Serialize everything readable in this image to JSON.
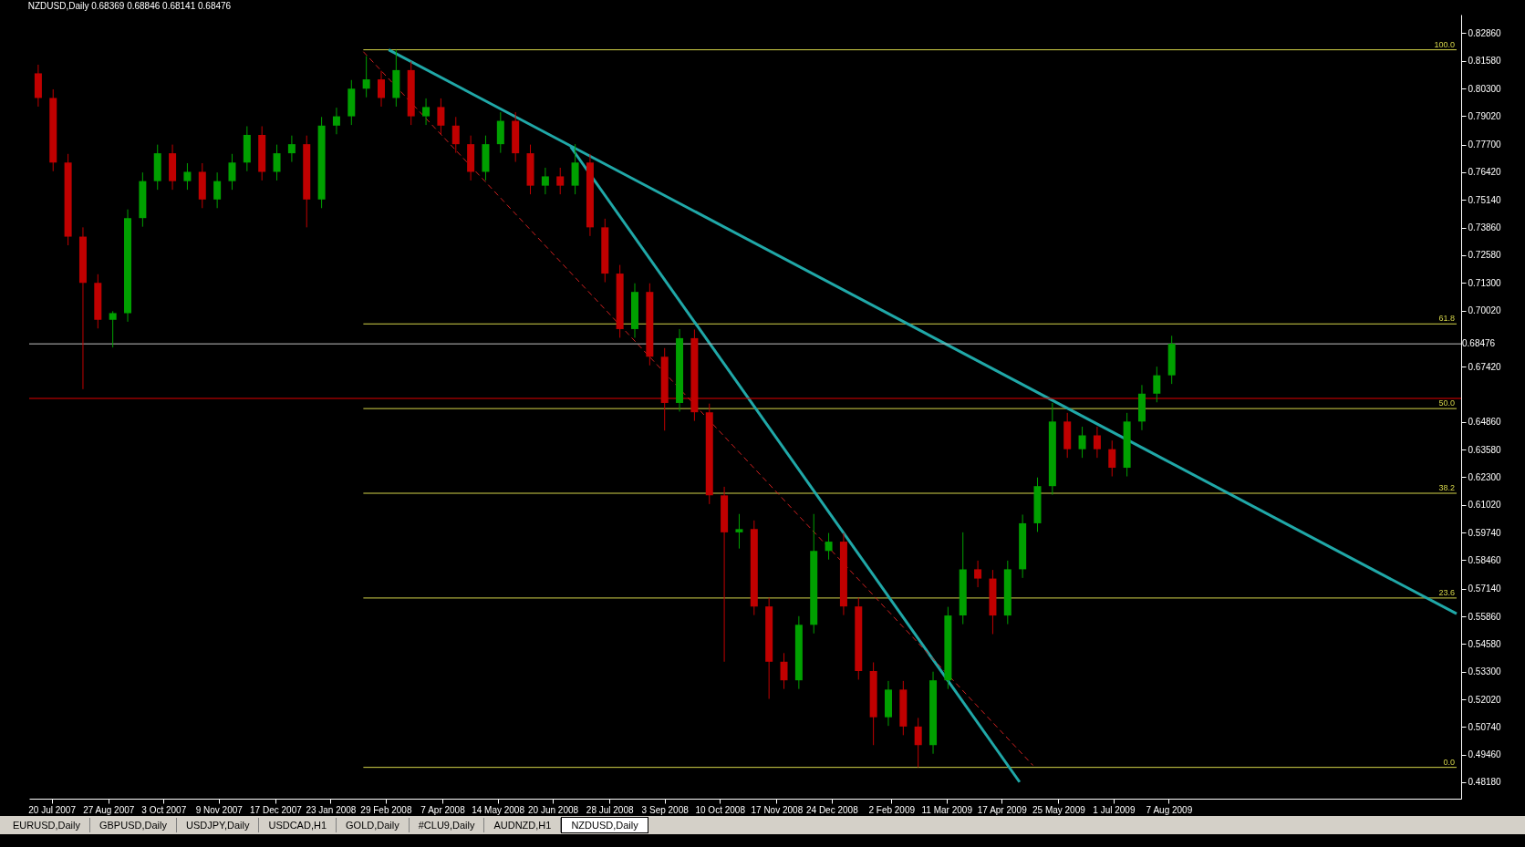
{
  "chart_data": {
    "type": "candlestick",
    "title": "NZDUSD,Daily  0.68369 0.68846 0.68141 0.68476",
    "x": [
      "2007-07-11",
      "2007-07-21",
      "2007-07-31",
      "2007-08-10",
      "2007-08-20",
      "2007-08-30",
      "2007-09-09",
      "2007-09-19",
      "2007-09-29",
      "2007-10-09",
      "2007-10-19",
      "2007-10-29",
      "2007-11-08",
      "2007-11-18",
      "2007-11-28",
      "2007-12-08",
      "2007-12-18",
      "2007-12-28",
      "2008-01-07",
      "2008-01-17",
      "2008-01-27",
      "2008-02-06",
      "2008-02-16",
      "2008-02-26",
      "2008-03-07",
      "2008-03-17",
      "2008-03-27",
      "2008-04-06",
      "2008-04-16",
      "2008-04-26",
      "2008-05-06",
      "2008-05-16",
      "2008-05-26",
      "2008-06-05",
      "2008-06-15",
      "2008-06-25",
      "2008-07-05",
      "2008-07-15",
      "2008-07-25",
      "2008-08-04",
      "2008-08-14",
      "2008-08-24",
      "2008-09-03",
      "2008-09-13",
      "2008-09-23",
      "2008-10-03",
      "2008-10-13",
      "2008-10-23",
      "2008-11-02",
      "2008-11-12",
      "2008-11-22",
      "2008-12-02",
      "2008-12-12",
      "2008-12-22",
      "2009-01-01",
      "2009-01-11",
      "2009-01-21",
      "2009-01-31",
      "2009-02-10",
      "2009-02-20",
      "2009-03-02",
      "2009-03-12",
      "2009-03-22",
      "2009-04-01",
      "2009-04-11",
      "2009-04-21",
      "2009-05-01",
      "2009-05-11",
      "2009-05-21",
      "2009-05-31",
      "2009-06-10",
      "2009-06-20",
      "2009-06-30",
      "2009-07-10",
      "2009-07-20",
      "2009-07-30",
      "2009-08-09"
    ],
    "ohlc": [
      [
        0.81,
        0.814,
        0.7946,
        0.7986
      ],
      [
        0.7986,
        0.8026,
        0.7647,
        0.7687
      ],
      [
        0.7687,
        0.7727,
        0.7304,
        0.7344
      ],
      [
        0.7344,
        0.7387,
        0.6638,
        0.713
      ],
      [
        0.713,
        0.717,
        0.6919,
        0.6959
      ],
      [
        0.6959,
        0.6999,
        0.6831,
        0.699
      ],
      [
        0.699,
        0.747,
        0.695,
        0.743
      ],
      [
        0.743,
        0.7641,
        0.739,
        0.7601
      ],
      [
        0.7601,
        0.777,
        0.7561,
        0.773
      ],
      [
        0.773,
        0.777,
        0.7561,
        0.7601
      ],
      [
        0.7601,
        0.7684,
        0.7561,
        0.7644
      ],
      [
        0.7644,
        0.7684,
        0.7476,
        0.7516
      ],
      [
        0.7516,
        0.7641,
        0.7476,
        0.7601
      ],
      [
        0.7601,
        0.7727,
        0.7561,
        0.7687
      ],
      [
        0.7687,
        0.7855,
        0.7647,
        0.7815
      ],
      [
        0.7815,
        0.7855,
        0.7604,
        0.7644
      ],
      [
        0.7644,
        0.777,
        0.7604,
        0.773
      ],
      [
        0.773,
        0.7812,
        0.769,
        0.7772
      ],
      [
        0.7772,
        0.7812,
        0.7387,
        0.7516
      ],
      [
        0.7516,
        0.7898,
        0.7476,
        0.7858
      ],
      [
        0.7858,
        0.7941,
        0.7818,
        0.7901
      ],
      [
        0.7901,
        0.8069,
        0.7861,
        0.8029
      ],
      [
        0.8029,
        0.818,
        0.7989,
        0.8072
      ],
      [
        0.8072,
        0.8112,
        0.7946,
        0.7986
      ],
      [
        0.7986,
        0.8209,
        0.7946,
        0.8115
      ],
      [
        0.8115,
        0.8155,
        0.7861,
        0.7901
      ],
      [
        0.7901,
        0.7984,
        0.7861,
        0.7944
      ],
      [
        0.7944,
        0.7984,
        0.7818,
        0.7858
      ],
      [
        0.7858,
        0.7898,
        0.7732,
        0.7772
      ],
      [
        0.7772,
        0.7812,
        0.7604,
        0.7644
      ],
      [
        0.7644,
        0.7812,
        0.7604,
        0.7772
      ],
      [
        0.7772,
        0.792,
        0.7732,
        0.788
      ],
      [
        0.788,
        0.792,
        0.769,
        0.773
      ],
      [
        0.773,
        0.777,
        0.754,
        0.758
      ],
      [
        0.758,
        0.7663,
        0.754,
        0.7623
      ],
      [
        0.7623,
        0.7663,
        0.754,
        0.758
      ],
      [
        0.758,
        0.7772,
        0.754,
        0.7687
      ],
      [
        0.7687,
        0.7727,
        0.7347,
        0.7387
      ],
      [
        0.7387,
        0.7427,
        0.7133,
        0.7173
      ],
      [
        0.7173,
        0.7213,
        0.6876,
        0.6916
      ],
      [
        0.6916,
        0.7128,
        0.6876,
        0.7088
      ],
      [
        0.7088,
        0.7128,
        0.6748,
        0.6788
      ],
      [
        0.6788,
        0.6828,
        0.6446,
        0.6574
      ],
      [
        0.6574,
        0.6916,
        0.6534,
        0.6874
      ],
      [
        0.6874,
        0.6914,
        0.6491,
        0.6531
      ],
      [
        0.6531,
        0.6571,
        0.6106,
        0.6146
      ],
      [
        0.6146,
        0.6186,
        0.5376,
        0.5975
      ],
      [
        0.5975,
        0.606,
        0.59,
        0.599
      ],
      [
        0.599,
        0.603,
        0.5592,
        0.5632
      ],
      [
        0.5632,
        0.5672,
        0.5204,
        0.5376
      ],
      [
        0.5376,
        0.5416,
        0.525,
        0.529
      ],
      [
        0.529,
        0.5587,
        0.525,
        0.5547
      ],
      [
        0.5547,
        0.606,
        0.5507,
        0.5889
      ],
      [
        0.5889,
        0.5972,
        0.5849,
        0.5932
      ],
      [
        0.5932,
        0.5972,
        0.5592,
        0.5632
      ],
      [
        0.5632,
        0.5672,
        0.5293,
        0.5333
      ],
      [
        0.5333,
        0.5373,
        0.499,
        0.5119
      ],
      [
        0.5119,
        0.5287,
        0.5079,
        0.5247
      ],
      [
        0.5247,
        0.5287,
        0.5036,
        0.5076
      ],
      [
        0.5076,
        0.5116,
        0.4887,
        0.499
      ],
      [
        0.499,
        0.533,
        0.495,
        0.529
      ],
      [
        0.529,
        0.563,
        0.525,
        0.559
      ],
      [
        0.559,
        0.5975,
        0.555,
        0.5804
      ],
      [
        0.5804,
        0.5844,
        0.5721,
        0.5761
      ],
      [
        0.5761,
        0.5801,
        0.5504,
        0.559
      ],
      [
        0.559,
        0.5844,
        0.555,
        0.5804
      ],
      [
        0.5804,
        0.6057,
        0.5764,
        0.6017
      ],
      [
        0.6017,
        0.6229,
        0.5977,
        0.6189
      ],
      [
        0.6189,
        0.6574,
        0.6149,
        0.6488
      ],
      [
        0.6488,
        0.6528,
        0.632,
        0.636
      ],
      [
        0.636,
        0.6464,
        0.632,
        0.6424
      ],
      [
        0.6424,
        0.6464,
        0.632,
        0.636
      ],
      [
        0.636,
        0.64,
        0.6234,
        0.6274
      ],
      [
        0.6274,
        0.6528,
        0.6234,
        0.6488
      ],
      [
        0.6488,
        0.6657,
        0.6448,
        0.6617
      ],
      [
        0.6617,
        0.6742,
        0.6577,
        0.6702
      ],
      [
        0.6702,
        0.6885,
        0.6662,
        0.6848
      ]
    ],
    "colors": [
      "#c00000",
      "#c00000",
      "#c00000",
      "#c00000",
      "#c00000",
      "#00a000",
      "#00a000",
      "#00a000",
      "#00a000",
      "#c00000",
      "#00a000",
      "#c00000",
      "#00a000",
      "#00a000",
      "#00a000",
      "#c00000",
      "#00a000",
      "#00a000",
      "#c00000",
      "#00a000",
      "#00a000",
      "#00a000",
      "#00a000",
      "#c00000",
      "#00a000",
      "#c00000",
      "#00a000",
      "#c00000",
      "#c00000",
      "#c00000",
      "#00a000",
      "#00a000",
      "#c00000",
      "#c00000",
      "#00a000",
      "#c00000",
      "#00a000",
      "#c00000",
      "#c00000",
      "#c00000",
      "#00a000",
      "#c00000",
      "#c00000",
      "#00a000",
      "#c00000",
      "#c00000",
      "#c00000",
      "#00a000",
      "#c00000",
      "#c00000",
      "#c00000",
      "#00a000",
      "#00a000",
      "#00a000",
      "#c00000",
      "#c00000",
      "#c00000",
      "#00a000",
      "#c00000",
      "#c00000",
      "#00a000",
      "#00a000",
      "#00a000",
      "#c00000",
      "#c00000",
      "#00a000",
      "#00a000",
      "#00a000",
      "#00a000",
      "#c00000",
      "#00a000",
      "#c00000",
      "#c00000",
      "#00a000",
      "#00a000",
      "#00a000",
      "#00a000"
    ],
    "series": [
      {
        "type": "line",
        "name": "100.0",
        "color": "#d4d44a",
        "x": [
          "2008-02-14",
          "2010-02-16"
        ],
        "values": [
          0.8209,
          0.8209
        ]
      },
      {
        "type": "line",
        "name": "61.8",
        "color": "#d4d44a",
        "x": [
          "2008-02-14",
          "2010-02-16"
        ],
        "values": [
          0.694,
          0.694
        ]
      },
      {
        "type": "line",
        "name": "50.0",
        "color": "#d4d44a",
        "x": [
          "2008-02-14",
          "2010-02-16"
        ],
        "values": [
          0.6548,
          0.6548
        ]
      },
      {
        "type": "line",
        "name": "38.2",
        "color": "#d4d44a",
        "x": [
          "2008-02-14",
          "2010-02-16"
        ],
        "values": [
          0.6156,
          0.6156
        ]
      },
      {
        "type": "line",
        "name": "23.6",
        "color": "#d4d44a",
        "x": [
          "2008-02-14",
          "2010-02-16"
        ],
        "values": [
          0.5671,
          0.5671
        ]
      },
      {
        "type": "line",
        "name": "0.0",
        "color": "#d4d44a",
        "x": [
          "2008-02-14",
          "2010-02-16"
        ],
        "values": [
          0.4887,
          0.4887
        ]
      },
      {
        "type": "line",
        "color": "#20a8a8",
        "x": [
          "2008-03-02",
          "2010-02-16"
        ],
        "values": [
          0.8209,
          0.5598
        ]
      },
      {
        "type": "line",
        "color": "#20a8a8",
        "x": [
          "2008-07-02",
          "2009-04-29"
        ],
        "values": [
          0.776,
          0.4819
        ]
      },
      {
        "type": "line",
        "color": "#d02020",
        "line_style": "dashed",
        "x": [
          "2008-02-14",
          "2009-05-08"
        ],
        "values": [
          0.82,
          0.4896
        ]
      }
    ],
    "ref_lines": [
      {
        "axis": "y",
        "value": 0.68476,
        "label": "0.68476",
        "color": "#c0c0c0"
      },
      {
        "axis": "y",
        "value": 0.6595,
        "color": "#e00000"
      }
    ],
    "xlim": [
      "2007-07-08",
      "2010-02-16"
    ],
    "xticks": [
      {
        "value": "2007-07-20",
        "label": "20 Jul 2007"
      },
      {
        "value": "2007-08-27",
        "label": "27 Aug 2007"
      },
      {
        "value": "2007-10-03",
        "label": "3 Oct 2007"
      },
      {
        "value": "2007-11-09",
        "label": "9 Nov 2007"
      },
      {
        "value": "2007-12-17",
        "label": "17 Dec 2007"
      },
      {
        "value": "2008-01-23",
        "label": "23 Jan 2008"
      },
      {
        "value": "2008-02-29",
        "label": "29 Feb 2008"
      },
      {
        "value": "2008-04-07",
        "label": "7 Apr 2008"
      },
      {
        "value": "2008-05-14",
        "label": "14 May 2008"
      },
      {
        "value": "2008-06-20",
        "label": "20 Jun 2008"
      },
      {
        "value": "2008-07-28",
        "label": "28 Jul 2008"
      },
      {
        "value": "2008-09-03",
        "label": "3 Sep 2008"
      },
      {
        "value": "2008-10-10",
        "label": "10 Oct 2008"
      },
      {
        "value": "2008-11-17",
        "label": "17 Nov 2008"
      },
      {
        "value": "2008-12-24",
        "label": "24 Dec 2008"
      },
      {
        "value": "2009-02-02",
        "label": "2 Feb 2009"
      },
      {
        "value": "2009-03-11",
        "label": "11 Mar 2009"
      },
      {
        "value": "2009-04-17",
        "label": "17 Apr 2009"
      },
      {
        "value": "2009-05-25",
        "label": "25 May 2009"
      },
      {
        "value": "2009-07-01",
        "label": "1 Jul 2009"
      },
      {
        "value": "2009-08-07",
        "label": "7 Aug 2009"
      }
    ],
    "ylim": [
      0.4742,
      0.8372
    ],
    "yticks": [
      {
        "value": 0.8286,
        "label": "0.82860"
      },
      {
        "value": 0.8158,
        "label": "0.81580"
      },
      {
        "value": 0.803,
        "label": "0.80300"
      },
      {
        "value": 0.7902,
        "label": "0.79020"
      },
      {
        "value": 0.777,
        "label": "0.77700"
      },
      {
        "value": 0.7642,
        "label": "0.76420"
      },
      {
        "value": 0.7514,
        "label": "0.75140"
      },
      {
        "value": 0.7386,
        "label": "0.73860"
      },
      {
        "value": 0.7258,
        "label": "0.72580"
      },
      {
        "value": 0.713,
        "label": "0.71300"
      },
      {
        "value": 0.7002,
        "label": "0.70020"
      },
      {
        "value": 0.6742,
        "label": "0.67420"
      },
      {
        "value": 0.6486,
        "label": "0.64860"
      },
      {
        "value": 0.6358,
        "label": "0.63580"
      },
      {
        "value": 0.623,
        "label": "0.62300"
      },
      {
        "value": 0.6102,
        "label": "0.61020"
      },
      {
        "value": 0.5974,
        "label": "0.59740"
      },
      {
        "value": 0.5846,
        "label": "0.58460"
      },
      {
        "value": 0.5714,
        "label": "0.57140"
      },
      {
        "value": 0.5586,
        "label": "0.55860"
      },
      {
        "value": 0.5458,
        "label": "0.54580"
      },
      {
        "value": 0.533,
        "label": "0.53300"
      },
      {
        "value": 0.5202,
        "label": "0.52020"
      },
      {
        "value": 0.5074,
        "label": "0.50740"
      },
      {
        "value": 0.4946,
        "label": "0.49460"
      },
      {
        "value": 0.4818,
        "label": "0.48180"
      }
    ],
    "annotations": [
      "EURUSD,Daily",
      "GBPUSD,Daily",
      "USDJPY,Daily",
      "USDCAD,H1",
      "GOLD,Daily",
      "#CLU9,Daily",
      "AUDNZD,H1",
      "NZDUSD,Daily"
    ]
  }
}
